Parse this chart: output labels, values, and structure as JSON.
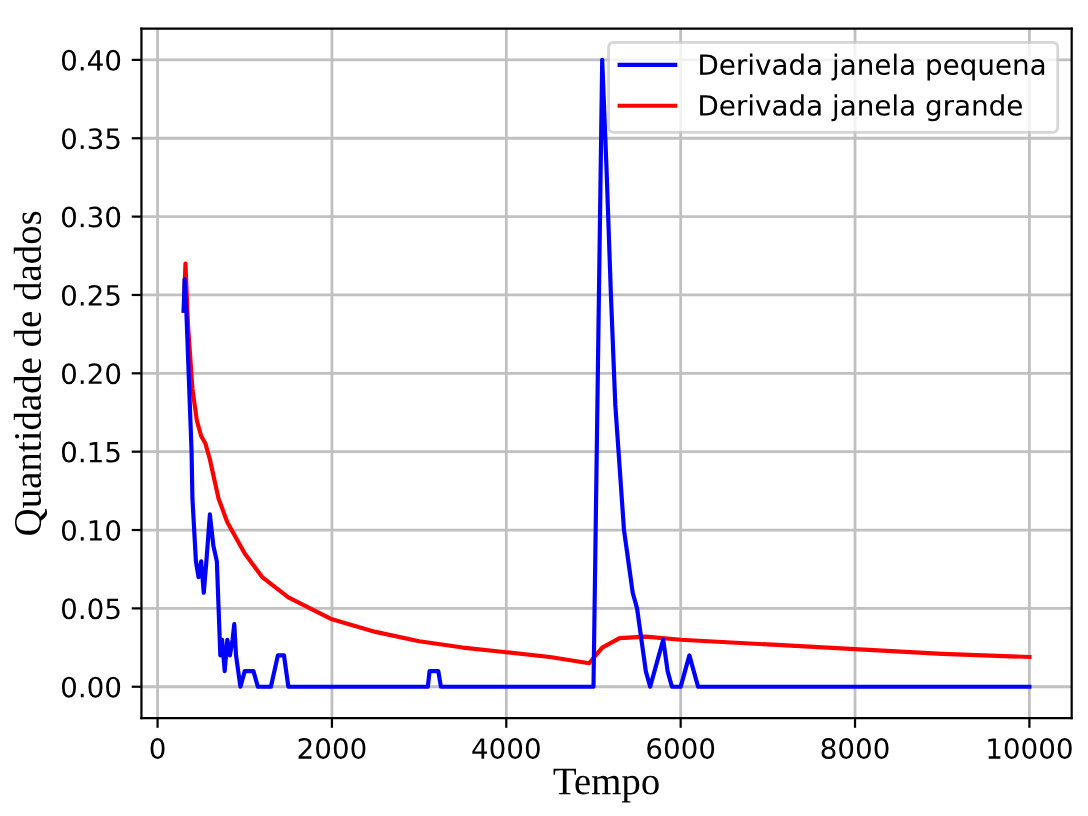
{
  "chart_data": {
    "type": "line",
    "xlabel": "Tempo",
    "ylabel": "Quantidade de dados",
    "xlim": [
      -185,
      10485
    ],
    "ylim": [
      -0.02,
      0.42
    ],
    "xticks": [
      0,
      2000,
      4000,
      6000,
      8000,
      10000
    ],
    "yticks": [
      {
        "value": 0,
        "label": "0.00"
      },
      {
        "value": 0.05,
        "label": "0.05"
      },
      {
        "value": 0.1,
        "label": "0.10"
      },
      {
        "value": 0.15,
        "label": "0.15"
      },
      {
        "value": 0.2,
        "label": "0.20"
      },
      {
        "value": 0.25,
        "label": "0.25"
      },
      {
        "value": 0.3,
        "label": "0.30"
      },
      {
        "value": 0.35,
        "label": "0.35"
      },
      {
        "value": 0.4,
        "label": "0.40"
      }
    ],
    "grid": true,
    "legend": "top right",
    "series": [
      {
        "name": "Derivada janela pequena",
        "color": "#0000ff",
        "x": [
          300,
          310,
          330,
          350,
          370,
          390,
          400,
          420,
          440,
          470,
          500,
          530,
          560,
          600,
          640,
          680,
          700,
          720,
          740,
          770,
          800,
          830,
          860,
          880,
          900,
          950,
          1000,
          1050,
          1100,
          1150,
          1300,
          1380,
          1450,
          1500,
          3100,
          3120,
          3220,
          3250,
          5000,
          5100,
          5150,
          5200,
          5250,
          5300,
          5350,
          5400,
          5450,
          5500,
          5550,
          5600,
          5650,
          5700,
          5750,
          5800,
          5850,
          5900,
          6000,
          6050,
          6100,
          6150,
          6200,
          10000
        ],
        "values": [
          0.24,
          0.26,
          0.24,
          0.21,
          0.18,
          0.15,
          0.12,
          0.1,
          0.08,
          0.07,
          0.08,
          0.06,
          0.08,
          0.11,
          0.09,
          0.08,
          0.05,
          0.02,
          0.03,
          0.01,
          0.03,
          0.02,
          0.03,
          0.04,
          0.02,
          0.0,
          0.01,
          0.01,
          0.01,
          0.0,
          0.0,
          0.02,
          0.02,
          0.0,
          0.0,
          0.01,
          0.01,
          0.0,
          0.0,
          0.4,
          0.33,
          0.25,
          0.18,
          0.14,
          0.1,
          0.08,
          0.06,
          0.05,
          0.03,
          0.01,
          0.0,
          0.01,
          0.02,
          0.03,
          0.01,
          0.0,
          0.0,
          0.01,
          0.02,
          0.01,
          0.0,
          0.0
        ]
      },
      {
        "name": "Derivada janela grande",
        "color": "#ff0000",
        "x": [
          300,
          320,
          350,
          400,
          450,
          500,
          550,
          600,
          700,
          800,
          1000,
          1200,
          1500,
          2000,
          2500,
          3000,
          3500,
          4000,
          4500,
          4950,
          5100,
          5300,
          5600,
          6000,
          7000,
          8000,
          9000,
          10000
        ],
        "values": [
          0.24,
          0.27,
          0.23,
          0.19,
          0.17,
          0.16,
          0.155,
          0.145,
          0.12,
          0.105,
          0.085,
          0.07,
          0.057,
          0.043,
          0.035,
          0.029,
          0.025,
          0.022,
          0.019,
          0.015,
          0.025,
          0.031,
          0.032,
          0.03,
          0.027,
          0.024,
          0.021,
          0.019
        ]
      }
    ]
  }
}
